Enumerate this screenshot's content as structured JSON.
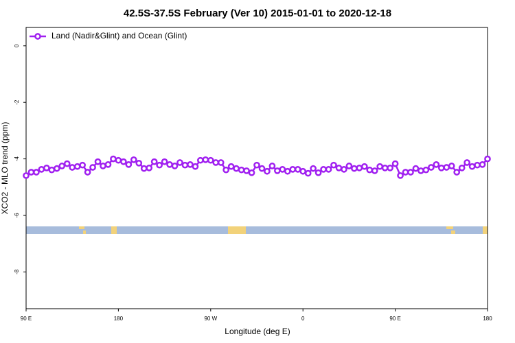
{
  "chart_data": {
    "type": "line",
    "title": "42.5S-37.5S February (Ver 10)   2015-01-01 to 2020-12-18",
    "x_label": "Longitude (deg E)",
    "y_label": "XCO2 - MLO trend (ppm)",
    "xlim": [
      90,
      540
    ],
    "ylim": [
      -9.3,
      0.65
    ],
    "xticks": [
      {
        "value": 90,
        "label": "90 E"
      },
      180,
      {
        "value": 270,
        "label": "90 W"
      },
      {
        "value": 360,
        "label": "0"
      },
      {
        "value": 450,
        "label": "90 E"
      },
      {
        "value": 540,
        "label": "180"
      }
    ],
    "yticks": [
      0,
      -2,
      -4,
      -6,
      -8
    ],
    "legend": "top-left",
    "x": [
      90,
      95,
      100,
      105,
      110,
      115,
      120,
      125,
      130,
      135,
      140,
      145,
      150,
      155,
      160,
      165,
      170,
      175,
      180,
      185,
      190,
      195,
      200,
      205,
      210,
      215,
      220,
      225,
      230,
      235,
      240,
      245,
      250,
      255,
      260,
      265,
      270,
      275,
      280,
      285,
      290,
      295,
      300,
      305,
      310,
      315,
      320,
      325,
      330,
      335,
      340,
      345,
      350,
      355,
      360,
      365,
      370,
      375,
      380,
      385,
      390,
      395,
      400,
      405,
      410,
      415,
      420,
      425,
      430,
      435,
      440,
      445,
      450,
      455,
      460,
      465,
      470,
      475,
      480,
      485,
      490,
      495,
      500,
      505,
      510,
      515,
      520,
      525,
      530,
      535,
      540
    ],
    "series": [
      {
        "name": "Land (Nadir&Glint) and Ocean (Glint)",
        "color": "#a020f0",
        "values": [
          -4.59,
          -4.47,
          -4.47,
          -4.37,
          -4.32,
          -4.39,
          -4.34,
          -4.25,
          -4.17,
          -4.3,
          -4.27,
          -4.22,
          -4.47,
          -4.3,
          -4.1,
          -4.25,
          -4.2,
          -4.0,
          -4.05,
          -4.1,
          -4.2,
          -4.03,
          -4.15,
          -4.34,
          -4.32,
          -4.1,
          -4.22,
          -4.1,
          -4.2,
          -4.25,
          -4.13,
          -4.22,
          -4.2,
          -4.27,
          -4.05,
          -4.03,
          -4.05,
          -4.13,
          -4.13,
          -4.39,
          -4.27,
          -4.34,
          -4.39,
          -4.42,
          -4.49,
          -4.22,
          -4.34,
          -4.44,
          -4.25,
          -4.42,
          -4.37,
          -4.44,
          -4.37,
          -4.37,
          -4.44,
          -4.51,
          -4.34,
          -4.49,
          -4.37,
          -4.37,
          -4.22,
          -4.32,
          -4.37,
          -4.25,
          -4.34,
          -4.32,
          -4.27,
          -4.39,
          -4.42,
          -4.27,
          -4.32,
          -4.32,
          -4.17,
          -4.59,
          -4.47,
          -4.47,
          -4.34,
          -4.42,
          -4.39,
          -4.3,
          -4.2,
          -4.32,
          -4.3,
          -4.25,
          -4.47,
          -4.32,
          -4.13,
          -4.27,
          -4.22,
          -4.2,
          -4.0
        ]
      }
    ]
  }
}
